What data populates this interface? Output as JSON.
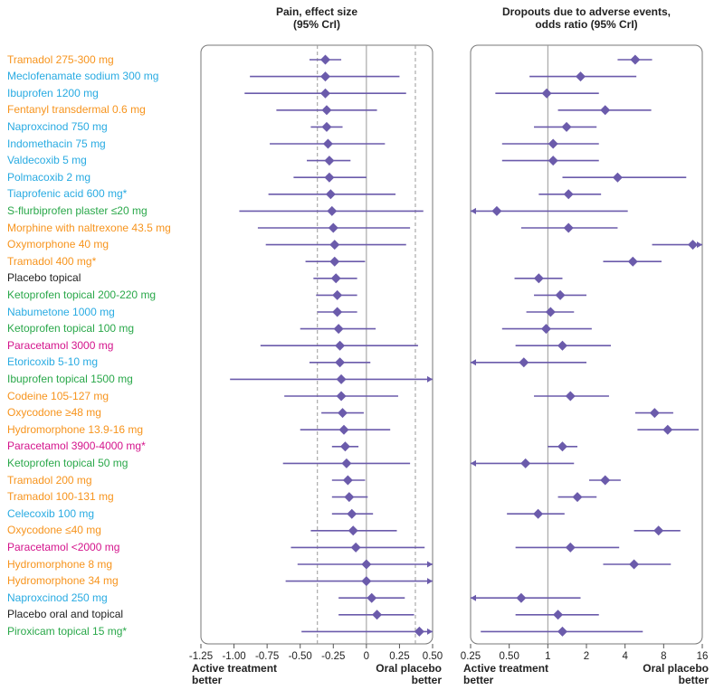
{
  "chart_data": {
    "type": "forest",
    "colors": {
      "nsaid": "#29abe2",
      "opioid": "#f7941d",
      "topical": "#2aa84a",
      "paracetamol": "#d4148c",
      "placebo": "#222222",
      "marker": "#6b5bab",
      "line": "#6b5bab"
    },
    "treatments": [
      {
        "name": "Tramadol 275-300 mg",
        "group": "opioid",
        "pain": [
          -0.31,
          -0.43,
          -0.19
        ],
        "dropout": [
          4.8,
          3.5,
          6.5
        ]
      },
      {
        "name": "Meclofenamate sodium 300 mg",
        "group": "nsaid",
        "pain": [
          -0.31,
          -0.88,
          0.25
        ],
        "dropout": [
          1.8,
          0.72,
          4.9
        ]
      },
      {
        "name": "Ibuprofen 1200 mg",
        "group": "nsaid",
        "pain": [
          -0.31,
          -0.92,
          0.3
        ],
        "dropout": [
          0.98,
          0.39,
          2.5
        ]
      },
      {
        "name": "Fentanyl transdermal 0.6 mg",
        "group": "opioid",
        "pain": [
          -0.3,
          -0.68,
          0.08
        ],
        "dropout": [
          2.8,
          1.2,
          6.4
        ]
      },
      {
        "name": "Naproxcinod 750 mg",
        "group": "nsaid",
        "pain": [
          -0.3,
          -0.42,
          -0.18
        ],
        "dropout": [
          1.4,
          0.78,
          2.4
        ]
      },
      {
        "name": "Indomethacin 75 mg",
        "group": "nsaid",
        "pain": [
          -0.29,
          -0.73,
          0.14
        ],
        "dropout": [
          1.1,
          0.44,
          2.5
        ]
      },
      {
        "name": "Valdecoxib 5 mg",
        "group": "nsaid",
        "pain": [
          -0.28,
          -0.45,
          -0.12
        ],
        "dropout": [
          1.1,
          0.44,
          2.5
        ]
      },
      {
        "name": "Polmacoxib 2 mg",
        "group": "nsaid",
        "pain": [
          -0.28,
          -0.55,
          0.0
        ],
        "dropout": [
          3.5,
          1.3,
          12.0
        ]
      },
      {
        "name": "Tiaprofenic acid 600 mg*",
        "group": "nsaid",
        "pain": [
          -0.27,
          -0.74,
          0.22
        ],
        "dropout": [
          1.45,
          0.85,
          2.6
        ]
      },
      {
        "name": "S-flurbiprofen plaster ≤20 mg",
        "group": "topical",
        "pain": [
          -0.26,
          -0.96,
          0.43
        ],
        "dropout": [
          0.4,
          0.25,
          4.2
        ]
      },
      {
        "name": "Morphine with naltrexone 43.5 mg",
        "group": "opioid",
        "pain": [
          -0.25,
          -0.82,
          0.33
        ],
        "dropout": [
          1.45,
          0.62,
          3.5
        ]
      },
      {
        "name": "Oxymorphone 40 mg",
        "group": "opioid",
        "pain": [
          -0.24,
          -0.76,
          0.3
        ],
        "dropout": [
          13.5,
          6.5,
          16.5
        ]
      },
      {
        "name": "Tramadol 400 mg*",
        "group": "opioid",
        "pain": [
          -0.24,
          -0.46,
          -0.01
        ],
        "dropout": [
          4.6,
          2.7,
          7.7
        ]
      },
      {
        "name": "Placebo topical",
        "group": "placebo",
        "pain": [
          -0.23,
          -0.4,
          -0.07
        ],
        "dropout": [
          0.85,
          0.55,
          1.3
        ]
      },
      {
        "name": "Ketoprofen topical 200-220 mg",
        "group": "topical",
        "pain": [
          -0.22,
          -0.38,
          -0.07
        ],
        "dropout": [
          1.25,
          0.78,
          2.0
        ]
      },
      {
        "name": "Nabumetone 1000 mg",
        "group": "nsaid",
        "pain": [
          -0.22,
          -0.37,
          -0.07
        ],
        "dropout": [
          1.05,
          0.68,
          1.6
        ]
      },
      {
        "name": "Ketoprofen topical 100 mg",
        "group": "topical",
        "pain": [
          -0.21,
          -0.5,
          0.07
        ],
        "dropout": [
          0.97,
          0.44,
          2.2
        ]
      },
      {
        "name": "Paracetamol 3000 mg",
        "group": "paracetamol",
        "pain": [
          -0.2,
          -0.8,
          0.39
        ],
        "dropout": [
          1.3,
          0.56,
          3.1
        ]
      },
      {
        "name": "Etoricoxib 5-10 mg",
        "group": "nsaid",
        "pain": [
          -0.2,
          -0.43,
          0.03
        ],
        "dropout": [
          0.65,
          0.25,
          2.0
        ]
      },
      {
        "name": "Ibuprofen topical 1500 mg",
        "group": "topical",
        "pain": [
          -0.19,
          -1.03,
          0.5
        ],
        "dropout": null
      },
      {
        "name": "Codeine 105-127 mg",
        "group": "opioid",
        "pain": [
          -0.19,
          -0.62,
          0.24
        ],
        "dropout": [
          1.5,
          0.78,
          3.0
        ]
      },
      {
        "name": "Oxycodone ≥48 mg",
        "group": "opioid",
        "pain": [
          -0.18,
          -0.34,
          -0.02
        ],
        "dropout": [
          6.8,
          4.8,
          9.5
        ]
      },
      {
        "name": "Hydromorphone 13.9-16 mg",
        "group": "opioid",
        "pain": [
          -0.17,
          -0.5,
          0.18
        ],
        "dropout": [
          8.6,
          5.0,
          15.0
        ]
      },
      {
        "name": "Paracetamol 3900-4000 mg*",
        "group": "paracetamol",
        "pain": [
          -0.16,
          -0.26,
          -0.06
        ],
        "dropout": [
          1.3,
          1.0,
          1.7
        ]
      },
      {
        "name": "Ketoprofen topical 50 mg",
        "group": "topical",
        "pain": [
          -0.15,
          -0.63,
          0.33
        ],
        "dropout": [
          0.67,
          0.25,
          1.6
        ]
      },
      {
        "name": "Tramadol 200 mg",
        "group": "opioid",
        "pain": [
          -0.14,
          -0.26,
          -0.01
        ],
        "dropout": [
          2.8,
          2.1,
          3.7
        ]
      },
      {
        "name": "Tramadol 100-131 mg",
        "group": "opioid",
        "pain": [
          -0.13,
          -0.26,
          0.01
        ],
        "dropout": [
          1.7,
          1.2,
          2.4
        ]
      },
      {
        "name": "Celecoxib 100 mg",
        "group": "nsaid",
        "pain": [
          -0.11,
          -0.26,
          0.05
        ],
        "dropout": [
          0.84,
          0.48,
          1.35
        ]
      },
      {
        "name": "Oxycodone ≤40 mg",
        "group": "opioid",
        "pain": [
          -0.1,
          -0.42,
          0.23
        ],
        "dropout": [
          7.3,
          4.7,
          10.8
        ]
      },
      {
        "name": "Paracetamol <2000 mg",
        "group": "paracetamol",
        "pain": [
          -0.08,
          -0.57,
          0.44
        ],
        "dropout": [
          1.5,
          0.56,
          3.6
        ]
      },
      {
        "name": "Hydromorphone 8 mg",
        "group": "opioid",
        "pain": [
          0.0,
          -0.52,
          0.5
        ],
        "dropout": [
          4.7,
          2.7,
          9.1
        ]
      },
      {
        "name": "Hydromorphone 34 mg",
        "group": "opioid",
        "pain": [
          0.0,
          -0.61,
          0.5
        ],
        "dropout": null
      },
      {
        "name": "Naproxcinod 250 mg",
        "group": "nsaid",
        "pain": [
          0.04,
          -0.21,
          0.29
        ],
        "dropout": [
          0.62,
          0.25,
          1.8
        ]
      },
      {
        "name": "Placebo oral and topical",
        "group": "placebo",
        "pain": [
          0.08,
          -0.21,
          0.36
        ],
        "dropout": [
          1.2,
          0.56,
          2.5
        ]
      },
      {
        "name": "Piroxicam topical 15 mg*",
        "group": "topical",
        "pain": [
          0.4,
          -0.49,
          0.5
        ],
        "dropout": [
          1.3,
          0.3,
          5.5
        ]
      }
    ],
    "left_panel": {
      "title_line1": "Pain, effect size",
      "title_line2": "(95% CrI)",
      "xlim": [
        -1.25,
        0.5
      ],
      "ticks": [
        -1.25,
        -1.0,
        -0.75,
        -0.5,
        -0.25,
        0,
        0.25,
        0.5
      ],
      "tick_labels": [
        "-1.25",
        "-1.00",
        "-0.75",
        "-0.50",
        "-0.25",
        "0",
        "0.25",
        "0.50"
      ],
      "reference_line": 0,
      "dashed_lines": [
        -0.37,
        0.37
      ],
      "left_annotation": "Active treatment better",
      "right_annotation": "Oral placebo better"
    },
    "right_panel": {
      "title_line1": "Dropouts due to adverse events,",
      "title_line2": "odds ratio (95% CrI)",
      "scale": "log2",
      "xlim": [
        0.25,
        16
      ],
      "ticks": [
        0.25,
        0.5,
        1,
        2,
        4,
        8,
        16
      ],
      "tick_labels": [
        "0.25",
        "0.50",
        "1",
        "2",
        "4",
        "8",
        "16"
      ],
      "reference_line": 1,
      "left_annotation": "Active treatment better",
      "right_annotation": "Oral placebo better"
    }
  }
}
